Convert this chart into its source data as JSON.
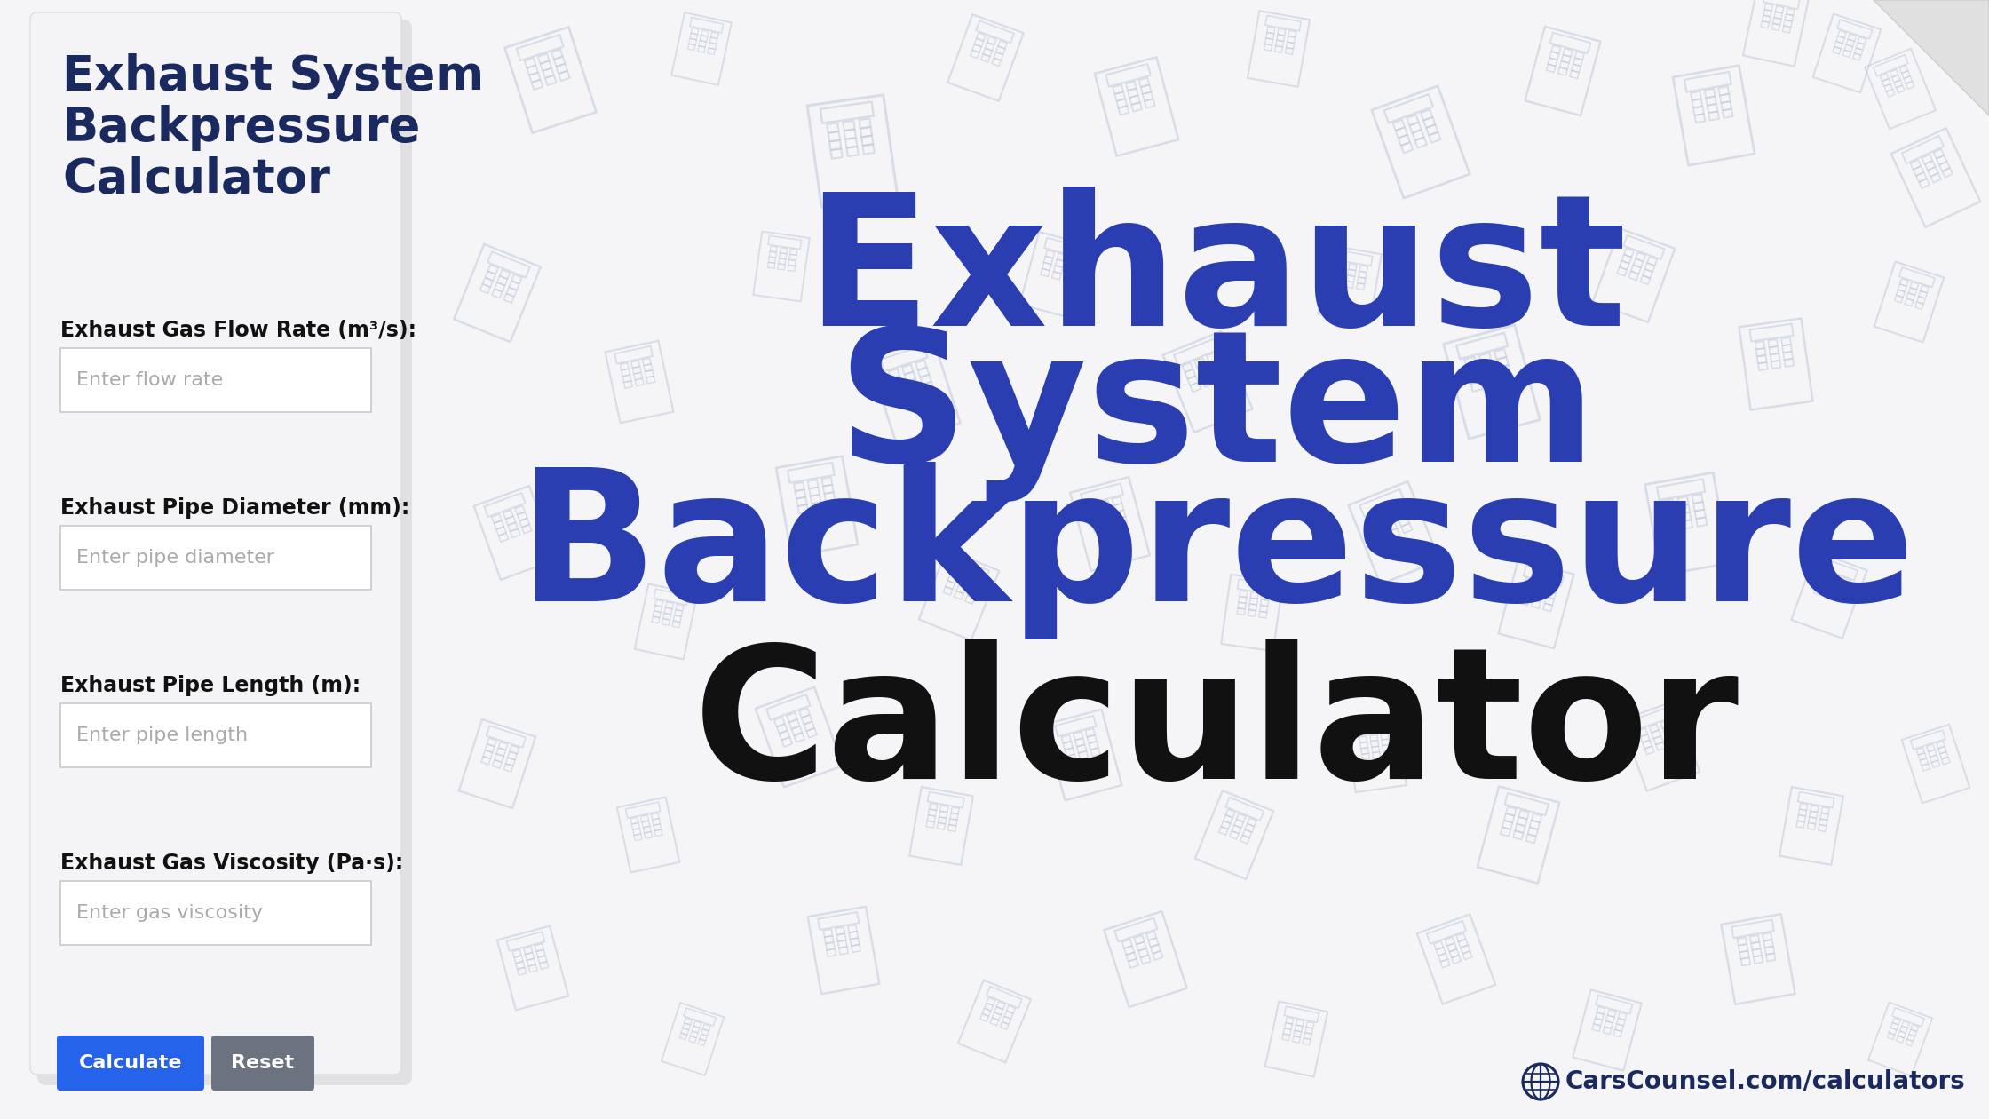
{
  "bg_color": "#f5f5f7",
  "card_color": "#f4f4f6",
  "card_title": "Exhaust System\nBackpressure\nCalculator",
  "card_title_color": "#1a2a5e",
  "right_title_line1": "Exhaust",
  "right_title_line2": "System",
  "right_title_line3": "Backpressure",
  "right_title_color": "#2a3eb1",
  "right_subtitle": "Calculator",
  "right_subtitle_color": "#111111",
  "fields": [
    {
      "label": "Exhaust Gas Flow Rate (m³/s):",
      "placeholder": "Enter flow rate"
    },
    {
      "label": "Exhaust Pipe Diameter (mm):",
      "placeholder": "Enter pipe diameter"
    },
    {
      "label": "Exhaust Pipe Length (m):",
      "placeholder": "Enter pipe length"
    },
    {
      "label": "Exhaust Gas Viscosity (Pa·s):",
      "placeholder": "Enter gas viscosity"
    }
  ],
  "btn_calculate_color": "#2563eb",
  "btn_reset_color": "#6b7280",
  "btn_calculate_text": "Calculate",
  "btn_reset_text": "Reset",
  "footer_text": "CarsCounsel.com/calculators",
  "footer_color": "#1a2a5e",
  "input_border_color": "#c8c8cc",
  "input_bg_color": "#ffffff",
  "placeholder_color": "#aaaaaa",
  "label_color": "#111111",
  "icon_color": "#c0c8d8",
  "icon_alpha": 0.55
}
